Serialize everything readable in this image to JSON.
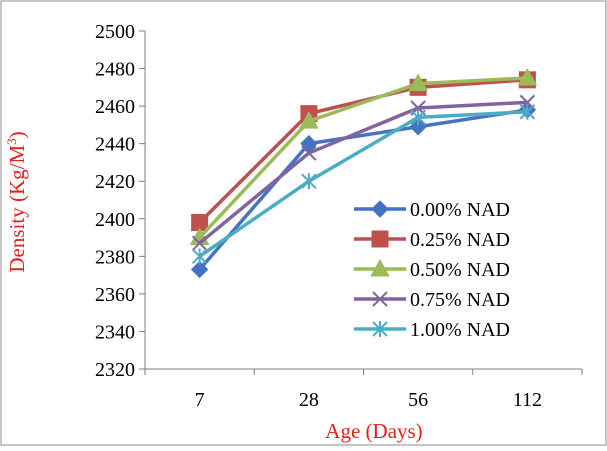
{
  "chart_data": {
    "type": "line",
    "title": "",
    "xlabel": "Age (Days)",
    "ylabel": "Density (Kg/M",
    "ylabel_superscript": "3",
    "ylabel_close": ")",
    "categories": [
      "7",
      "28",
      "56",
      "112"
    ],
    "ylim": [
      2320,
      2500
    ],
    "yticks": [
      2320,
      2340,
      2360,
      2380,
      2400,
      2420,
      2440,
      2460,
      2480,
      2500
    ],
    "grid": false,
    "legend_position": "bottom-right",
    "series": [
      {
        "name": "0.00% NAD",
        "color": "#4472C4",
        "marker": "diamond",
        "values": [
          2373,
          2440,
          2449,
          2458
        ]
      },
      {
        "name": "0.25% NAD",
        "color": "#C0504D",
        "marker": "square",
        "values": [
          2398,
          2456,
          2470,
          2474
        ]
      },
      {
        "name": "0.50% NAD",
        "color": "#9BBB59",
        "marker": "triangle",
        "values": [
          2390,
          2452,
          2472,
          2475
        ]
      },
      {
        "name": "0.75% NAD",
        "color": "#8064A2",
        "marker": "x",
        "values": [
          2387,
          2435,
          2459,
          2462
        ]
      },
      {
        "name": "1.00% NAD",
        "color": "#4BACC6",
        "marker": "star",
        "values": [
          2380,
          2420,
          2454,
          2457
        ]
      }
    ],
    "label_color": "#E0201B"
  }
}
